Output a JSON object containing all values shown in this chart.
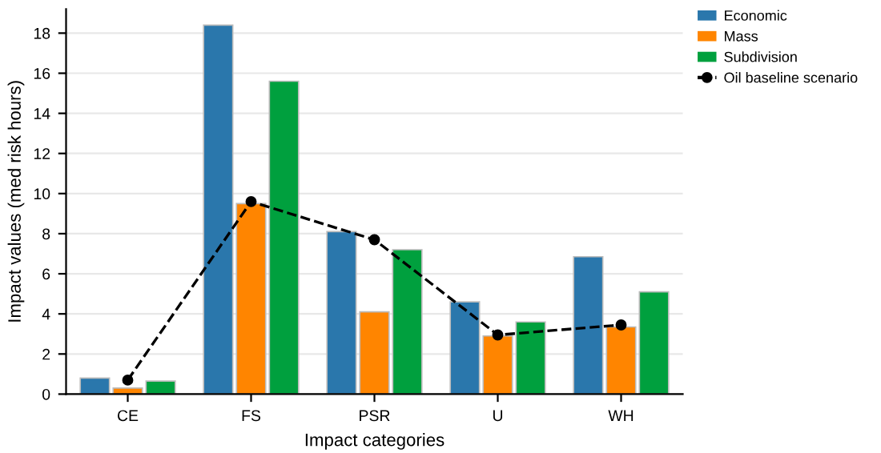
{
  "chart_data": {
    "type": "bar",
    "xlabel": "Impact categories",
    "ylabel": "Impact values (med risk hours)",
    "categories": [
      "CE",
      "FS",
      "PSR",
      "U",
      "WH"
    ],
    "series": [
      {
        "name": "Economic",
        "color": "#2a77ac",
        "values": [
          0.8,
          18.4,
          8.1,
          4.6,
          6.85
        ]
      },
      {
        "name": "Mass",
        "color": "#ff8500",
        "values": [
          0.3,
          9.5,
          4.1,
          2.9,
          3.35
        ]
      },
      {
        "name": "Subdivision",
        "color": "#00a03e",
        "values": [
          0.65,
          15.6,
          7.2,
          3.6,
          5.1
        ]
      },
      {
        "name": "Oil baseline scenario",
        "type": "line",
        "color": "#000000",
        "marker": "circle",
        "line_style": "dashed",
        "values": [
          0.7,
          9.6,
          7.7,
          2.95,
          3.45
        ]
      }
    ],
    "ylim": [
      0,
      19.2
    ],
    "yticks": [
      0,
      2,
      4,
      6,
      8,
      10,
      12,
      14,
      16,
      18
    ],
    "grid": "y",
    "legend": "top right"
  }
}
